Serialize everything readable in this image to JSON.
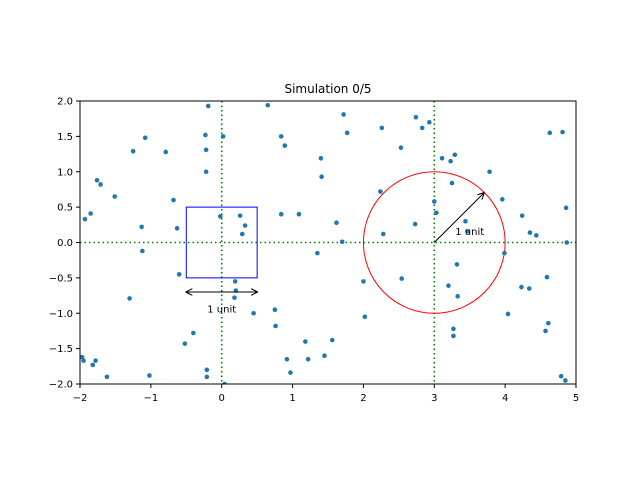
{
  "chart_data": {
    "type": "scatter",
    "title": "Simulation 0/5",
    "xlabel": "",
    "ylabel": "",
    "xlim": [
      -2,
      5
    ],
    "ylim": [
      -2,
      2
    ],
    "x_ticks": [
      -2,
      -1,
      0,
      1,
      2,
      3,
      4,
      5
    ],
    "x_tick_labels": [
      "−2",
      "−1",
      "0",
      "1",
      "2",
      "3",
      "4",
      "5"
    ],
    "y_ticks": [
      -2.0,
      -1.5,
      -1.0,
      -0.5,
      0.0,
      0.5,
      1.0,
      1.5,
      2.0
    ],
    "y_tick_labels": [
      "−2.0",
      "−1.5",
      "−1.0",
      "−0.5",
      "0.0",
      "0.5",
      "1.0",
      "1.5",
      "2.0"
    ],
    "grid": false,
    "reference_lines": [
      {
        "orientation": "horizontal",
        "value": 0,
        "style": "dotted",
        "color": "#008000"
      },
      {
        "orientation": "vertical",
        "value": 0,
        "style": "dotted",
        "color": "#008000"
      },
      {
        "orientation": "vertical",
        "value": 3,
        "style": "dotted",
        "color": "#008000"
      }
    ],
    "shapes": {
      "square": {
        "center": [
          0,
          0
        ],
        "side": 1,
        "color": "#0000ff"
      },
      "circle": {
        "center": [
          3,
          0
        ],
        "radius": 1,
        "color": "#ff0000"
      }
    },
    "annotations": {
      "square_arrow": {
        "from": [
          -0.5,
          -0.7
        ],
        "to": [
          0.5,
          -0.7
        ],
        "text": "1 unit",
        "text_at": [
          0,
          -0.93
        ]
      },
      "circle_arrow": {
        "from": [
          3,
          0
        ],
        "to": [
          3.7,
          0.7
        ],
        "text": "1 unit",
        "text_at": [
          3.5,
          0.16
        ]
      }
    },
    "point_color": "#1f77b4",
    "points": [
      [
        -1.97,
        -1.62
      ],
      [
        -1.95,
        -1.67
      ],
      [
        -1.93,
        0.33
      ],
      [
        -1.85,
        0.41
      ],
      [
        -1.82,
        -1.73
      ],
      [
        -1.78,
        -1.67
      ],
      [
        -1.76,
        0.88
      ],
      [
        -1.71,
        0.82
      ],
      [
        -1.62,
        -1.9
      ],
      [
        -1.51,
        0.65
      ],
      [
        -1.3,
        -0.79
      ],
      [
        -1.25,
        1.29
      ],
      [
        -1.13,
        0.22
      ],
      [
        -1.12,
        -0.12
      ],
      [
        -1.08,
        1.48
      ],
      [
        -1.02,
        -1.88
      ],
      [
        -0.79,
        1.28
      ],
      [
        -0.68,
        0.6
      ],
      [
        -0.63,
        0.2
      ],
      [
        -0.6,
        -0.45
      ],
      [
        -0.52,
        -1.43
      ],
      [
        -0.4,
        -1.28
      ],
      [
        -0.23,
        1.52
      ],
      [
        -0.22,
        1.31
      ],
      [
        -0.22,
        1.0
      ],
      [
        -0.21,
        -1.9
      ],
      [
        -0.21,
        -1.8
      ],
      [
        -0.19,
        1.93
      ],
      [
        -0.02,
        0.37
      ],
      [
        0.02,
        1.5
      ],
      [
        0.04,
        -2.0
      ],
      [
        0.18,
        -0.78
      ],
      [
        0.19,
        -0.55
      ],
      [
        0.2,
        -0.68
      ],
      [
        0.26,
        0.38
      ],
      [
        0.29,
        0.12
      ],
      [
        0.33,
        0.24
      ],
      [
        0.45,
        -1.0
      ],
      [
        0.65,
        1.94
      ],
      [
        0.75,
        -0.95
      ],
      [
        0.76,
        -1.18
      ],
      [
        0.84,
        1.5
      ],
      [
        0.84,
        0.4
      ],
      [
        0.89,
        1.37
      ],
      [
        0.92,
        -1.65
      ],
      [
        0.97,
        -1.84
      ],
      [
        1.09,
        0.4
      ],
      [
        1.18,
        -1.4
      ],
      [
        1.22,
        -1.65
      ],
      [
        1.35,
        -0.15
      ],
      [
        1.4,
        1.19
      ],
      [
        1.41,
        0.93
      ],
      [
        1.45,
        -1.6
      ],
      [
        1.56,
        -1.38
      ],
      [
        1.62,
        0.28
      ],
      [
        1.7,
        0.01
      ],
      [
        1.72,
        1.81
      ],
      [
        1.77,
        1.55
      ],
      [
        2.0,
        -0.55
      ],
      [
        2.02,
        -1.05
      ],
      [
        2.24,
        0.72
      ],
      [
        2.26,
        1.62
      ],
      [
        2.28,
        0.12
      ],
      [
        2.53,
        1.34
      ],
      [
        2.54,
        -0.51
      ],
      [
        2.73,
        0.26
      ],
      [
        2.74,
        1.77
      ],
      [
        2.83,
        1.62
      ],
      [
        2.93,
        1.7
      ],
      [
        3.0,
        0.58
      ],
      [
        3.03,
        0.42
      ],
      [
        3.11,
        1.19
      ],
      [
        3.2,
        -0.61
      ],
      [
        3.23,
        1.15
      ],
      [
        3.25,
        0.84
      ],
      [
        3.27,
        -1.32
      ],
      [
        3.27,
        -1.22
      ],
      [
        3.29,
        1.24
      ],
      [
        3.32,
        -0.31
      ],
      [
        3.33,
        -0.76
      ],
      [
        3.44,
        0.3
      ],
      [
        3.47,
        0.16
      ],
      [
        3.78,
        1.0
      ],
      [
        3.96,
        0.61
      ],
      [
        3.99,
        -0.15
      ],
      [
        4.04,
        -1.01
      ],
      [
        4.23,
        -0.63
      ],
      [
        4.24,
        0.38
      ],
      [
        4.34,
        -0.65
      ],
      [
        4.35,
        0.14
      ],
      [
        4.44,
        0.1
      ],
      [
        4.57,
        -1.25
      ],
      [
        4.59,
        -0.49
      ],
      [
        4.61,
        -1.14
      ],
      [
        4.63,
        1.55
      ],
      [
        4.79,
        -1.89
      ],
      [
        4.81,
        1.56
      ],
      [
        4.85,
        -1.95
      ],
      [
        4.86,
        0.49
      ],
      [
        4.87,
        0.0
      ]
    ]
  }
}
